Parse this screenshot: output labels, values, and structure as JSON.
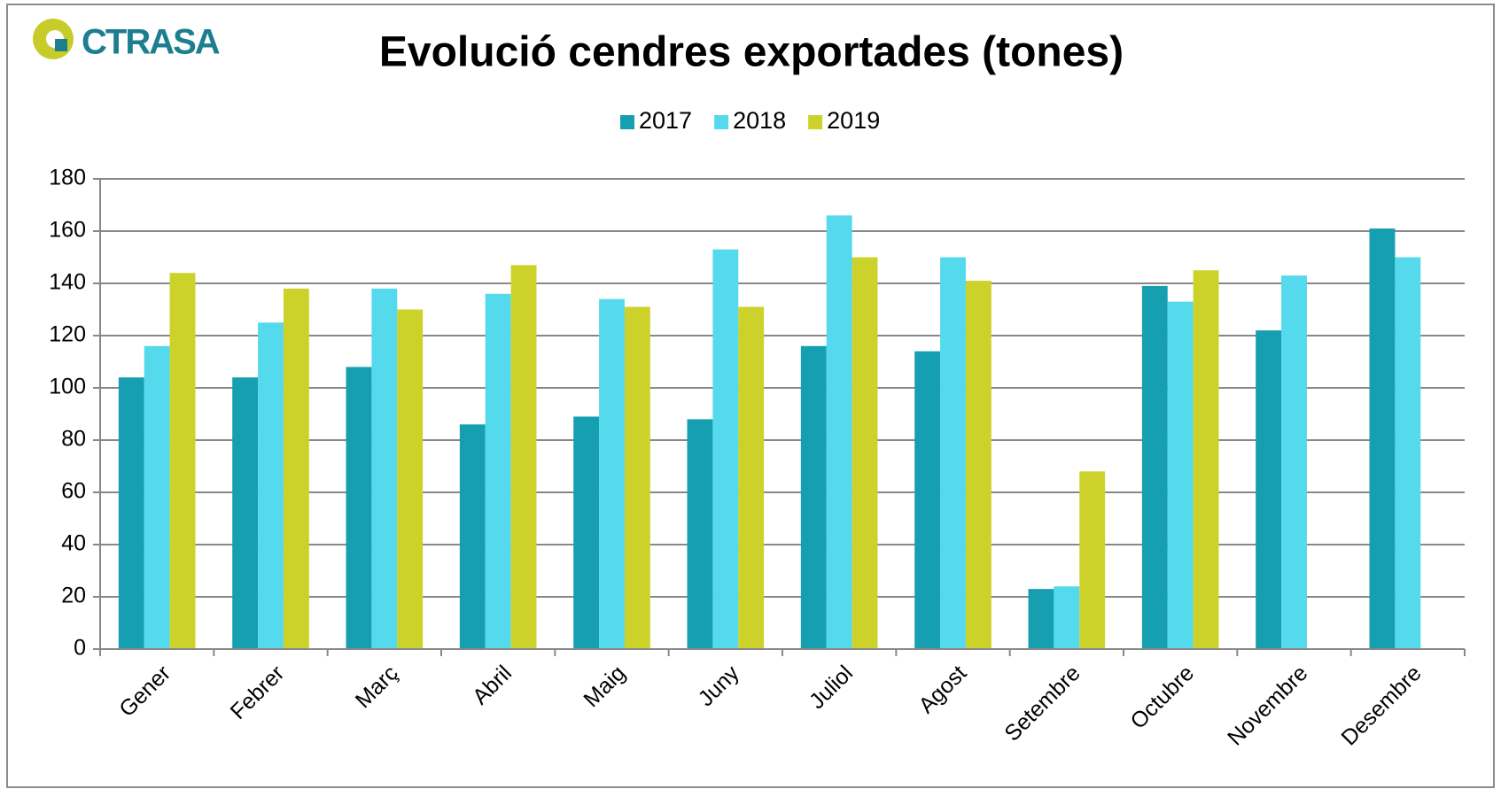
{
  "logo": "CTRASA",
  "chart_data": {
    "type": "bar",
    "title": "Evolució cendres exportades (tones)",
    "categories": [
      "Gener",
      "Febrer",
      "Març",
      "Abril",
      "Maig",
      "Juny",
      "Juliol",
      "Agost",
      "Setembre",
      "Octubre",
      "Novembre",
      "Desembre"
    ],
    "series": [
      {
        "name": "2017",
        "color": "#169fb0",
        "values": [
          104,
          104,
          108,
          86,
          89,
          88,
          116,
          114,
          23,
          139,
          122,
          161
        ]
      },
      {
        "name": "2018",
        "color": "#55d9ec",
        "values": [
          116,
          125,
          138,
          136,
          134,
          153,
          166,
          150,
          24,
          133,
          143,
          150
        ]
      },
      {
        "name": "2019",
        "color": "#cdd22b",
        "values": [
          144,
          138,
          130,
          147,
          131,
          131,
          150,
          141,
          68,
          145,
          null,
          null
        ]
      }
    ],
    "ylim": [
      0,
      180
    ],
    "yticks": [
      0,
      20,
      40,
      60,
      80,
      100,
      120,
      140,
      160,
      180
    ],
    "grid": true,
    "legend": "top"
  }
}
